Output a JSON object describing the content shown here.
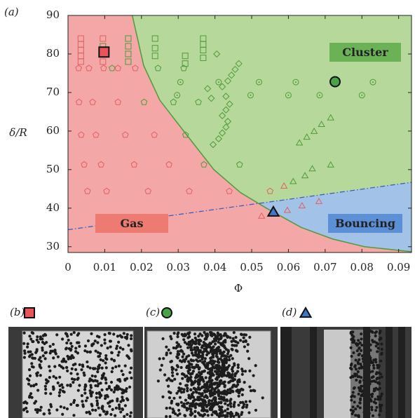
{
  "chart_data": {
    "type": "phase-diagram",
    "panel_label": "(a)",
    "x_label": "Φ",
    "y_label": "δ/R",
    "xlim": [
      0,
      0.0935
    ],
    "ylim": [
      28.5,
      90
    ],
    "xticks": [
      0,
      0.01,
      0.02,
      0.03,
      0.04,
      0.05,
      0.06,
      0.07,
      0.08,
      0.09
    ],
    "yticks": [
      30,
      40,
      50,
      60,
      70,
      80,
      90
    ],
    "background_color": "#f4a7a7",
    "cluster_region": {
      "color": "#b6d99b",
      "line_color": "#4f9a3a",
      "x": [
        0.0175,
        0.0206,
        0.025,
        0.0315,
        0.0397,
        0.047,
        0.054,
        0.0635,
        0.072,
        0.0807,
        0.0935
      ],
      "y": [
        90,
        77,
        68,
        60,
        50,
        44,
        40,
        35,
        32,
        30,
        28.7
      ]
    },
    "bouncing_region": {
      "color": "#a3c2e8",
      "line_color": "#3a5fbf",
      "x": [
        0,
        0.0935
      ],
      "y": [
        34.4,
        46.7
      ]
    },
    "annotations": [
      {
        "text": "Cluster",
        "color": "#6bb257"
      },
      {
        "text": "Gas",
        "color": "#ee7b72"
      },
      {
        "text": "Bouncing",
        "color": "#5b8fd6"
      }
    ],
    "series": [
      {
        "marker": "square",
        "color": "#e06060",
        "filled": false,
        "x": [
          0.0035,
          0.0035,
          0.0035,
          0.0035,
          0.0035,
          0.0095,
          0.0095
        ],
        "y": [
          78,
          79.5,
          81,
          82.5,
          84,
          78,
          84
        ]
      },
      {
        "marker": "pentagon",
        "color": "#e06060",
        "filled": false,
        "x": [
          0.0029,
          0.0057,
          0.0097,
          0.0136,
          0.0183,
          0.003,
          0.0067,
          0.0136,
          0.0036,
          0.0076,
          0.0156,
          0.0235,
          0.0044,
          0.009,
          0.018,
          0.0275,
          0.0053,
          0.0105,
          0.0218,
          0.033,
          0.0439,
          0.055
        ],
        "y": [
          76.3,
          76.3,
          76.3,
          76.3,
          76.3,
          67.5,
          67.5,
          67.5,
          59,
          59,
          59,
          59,
          51.3,
          51.3,
          51.3,
          51.3,
          44.4,
          44.4,
          44.4,
          44.4,
          44.4,
          44.4
        ]
      },
      {
        "marker": "triangle",
        "color": "#e06060",
        "filled": false,
        "x": [
          0.0527,
          0.0597,
          0.0637,
          0.0683,
          0.0588
        ],
        "y": [
          38,
          39.5,
          40.7,
          41.8,
          45.8
        ]
      },
      {
        "marker": "pentagon",
        "color": "#4f9a3a",
        "filled": false,
        "x": [
          0.012,
          0.0207,
          0.0245,
          0.0315,
          0.032,
          0.0287,
          0.0355,
          0.037,
          0.0467
        ],
        "y": [
          76.3,
          67.5,
          76.3,
          76.3,
          59,
          67.5,
          67.5,
          51.3,
          51.3
        ]
      },
      {
        "marker": "square",
        "color": "#4f9a3a",
        "filled": false,
        "x": [
          0.0095,
          0.0164,
          0.0164,
          0.0164,
          0.0164,
          0.0237,
          0.0237,
          0.0237,
          0.0319,
          0.0319,
          0.0368,
          0.0368,
          0.0368,
          0.0368
        ],
        "y": [
          82,
          78,
          80,
          82,
          84,
          79.5,
          81.5,
          84,
          77.5,
          79.5,
          79,
          81,
          82.5,
          84
        ]
      },
      {
        "marker": "circle-dot",
        "color": "#4f9a3a",
        "filled": false,
        "x": [
          0.0306,
          0.0297,
          0.041,
          0.0497,
          0.052,
          0.06,
          0.062,
          0.0685,
          0.08,
          0.083
        ],
        "y": [
          72.7,
          69.3,
          72.7,
          69.3,
          72.7,
          69.3,
          72.7,
          69.3,
          69.3,
          72.7
        ]
      },
      {
        "marker": "diamond",
        "color": "#4f9a3a",
        "filled": false,
        "x": [
          0.0395,
          0.041,
          0.042,
          0.043,
          0.0435,
          0.042,
          0.043,
          0.044,
          0.043,
          0.042,
          0.0435,
          0.0445,
          0.0455,
          0.0465,
          0.0405,
          0.038,
          0.039
        ],
        "y": [
          56.5,
          58,
          59.5,
          61,
          62.5,
          64,
          65.5,
          67,
          69,
          71.5,
          73,
          74.5,
          76,
          77.5,
          80,
          71,
          68.5
        ]
      },
      {
        "marker": "triangle",
        "color": "#4f9a3a",
        "filled": false,
        "x": [
          0.0613,
          0.0645,
          0.0665,
          0.0715,
          0.063,
          0.065,
          0.067,
          0.069,
          0.0715
        ],
        "y": [
          47,
          48.5,
          50.3,
          51.3,
          57,
          58.5,
          60,
          61.8,
          63.5
        ]
      },
      {
        "marker": "square",
        "color": "#e8545a",
        "filled": true,
        "x": [
          0.0098
        ],
        "y": [
          80.5
        ]
      },
      {
        "marker": "circle",
        "color": "#4aa147",
        "filled": true,
        "x": [
          0.0727
        ],
        "y": [
          72.8
        ]
      },
      {
        "marker": "triangle",
        "color": "#3f76c8",
        "filled": true,
        "x": [
          0.0559
        ],
        "y": [
          39.1
        ]
      }
    ]
  },
  "photos": [
    {
      "label": "(b)"
    },
    {
      "label": "(c)"
    },
    {
      "label": "(d)"
    }
  ]
}
